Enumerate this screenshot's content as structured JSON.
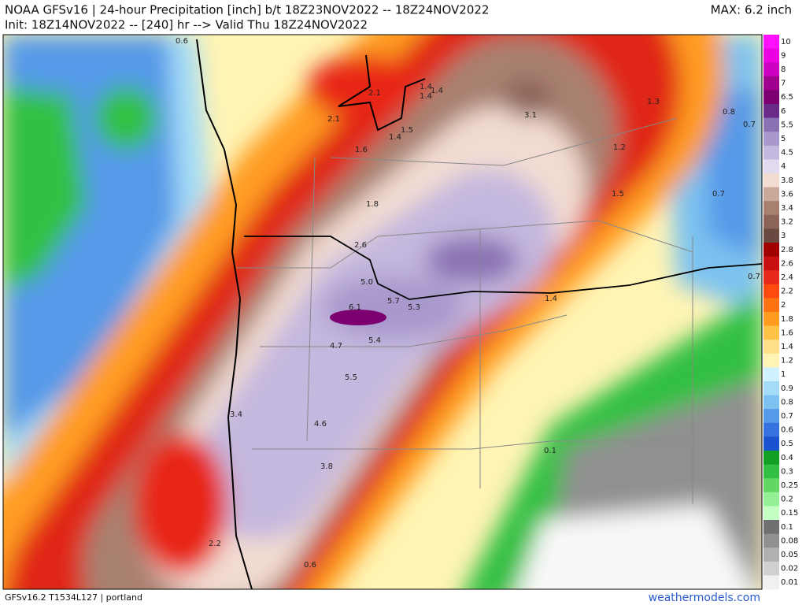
{
  "header": {
    "title_line1": "NOAA GFSv16 | 24-hour Precipitation [inch] b/t 18Z23NOV2022 -- 18Z24NOV2022",
    "title_line2": "Init: 18Z14NOV2022 -- [240] hr --> Valid Thu 18Z24NOV2022",
    "max": "MAX: 6.2 inch"
  },
  "colorbar": [
    {
      "label": "10",
      "color": "#ff10ff"
    },
    {
      "label": "9",
      "color": "#ea00e0"
    },
    {
      "label": "8",
      "color": "#cc00c0"
    },
    {
      "label": "7",
      "color": "#a0008e"
    },
    {
      "label": "6.5",
      "color": "#7c0070"
    },
    {
      "label": "6",
      "color": "#6a2a8a"
    },
    {
      "label": "5.5",
      "color": "#8a72b4"
    },
    {
      "label": "5",
      "color": "#a898cc"
    },
    {
      "label": "4.5",
      "color": "#c4b8de"
    },
    {
      "label": "4",
      "color": "#e2daee"
    },
    {
      "label": "3.8",
      "color": "#f2dcd2"
    },
    {
      "label": "3.6",
      "color": "#c8a898"
    },
    {
      "label": "3.4",
      "color": "#a88070"
    },
    {
      "label": "3.2",
      "color": "#8c6458"
    },
    {
      "label": "3",
      "color": "#6a4a40"
    },
    {
      "label": "2.8",
      "color": "#a00000"
    },
    {
      "label": "2.6",
      "color": "#c81010"
    },
    {
      "label": "2.4",
      "color": "#e82818"
    },
    {
      "label": "2.2",
      "color": "#ff4a10"
    },
    {
      "label": "2",
      "color": "#ff7410"
    },
    {
      "label": "1.8",
      "color": "#ff9c20"
    },
    {
      "label": "1.6",
      "color": "#ffc248"
    },
    {
      "label": "1.4",
      "color": "#ffe088"
    },
    {
      "label": "1.2",
      "color": "#fff4b4"
    },
    {
      "label": "1",
      "color": "#cef2ff"
    },
    {
      "label": "0.9",
      "color": "#a4dcf8"
    },
    {
      "label": "0.8",
      "color": "#7cc2f0"
    },
    {
      "label": "0.7",
      "color": "#549ae8"
    },
    {
      "label": "0.6",
      "color": "#3472e0"
    },
    {
      "label": "0.5",
      "color": "#1a52d0"
    },
    {
      "label": "0.4",
      "color": "#12a024"
    },
    {
      "label": "0.3",
      "color": "#32c042"
    },
    {
      "label": "0.25",
      "color": "#62d862"
    },
    {
      "label": "0.2",
      "color": "#94f094"
    },
    {
      "label": "0.15",
      "color": "#c4ffc4"
    },
    {
      "label": "0.1",
      "color": "#707070"
    },
    {
      "label": "0.08",
      "color": "#909090"
    },
    {
      "label": "0.05",
      "color": "#b0b0b0"
    },
    {
      "label": "0.02",
      "color": "#d0d0d0"
    },
    {
      "label": "0.01",
      "color": "#f0f0f0"
    }
  ],
  "map_labels": [
    "0.6",
    "2.1",
    "2.1",
    "1.4",
    "1.4",
    "1.4",
    "1.5",
    "1.4",
    "1.6",
    "3.1",
    "1.3",
    "0.8",
    "0.7",
    "1.2",
    "1.5",
    "0.7",
    "1.8",
    "2.6",
    "0.7",
    "5.0",
    "6.1",
    "5.7",
    "5.3",
    "1.4",
    "4.7",
    "5.4",
    "5.5",
    "3.4",
    "4.6",
    "3.8",
    "0.1",
    "2.2",
    "0.6"
  ],
  "footer": {
    "model": "GFSv16.2 T1534L127 | portland",
    "site": "weathermodels.com"
  }
}
